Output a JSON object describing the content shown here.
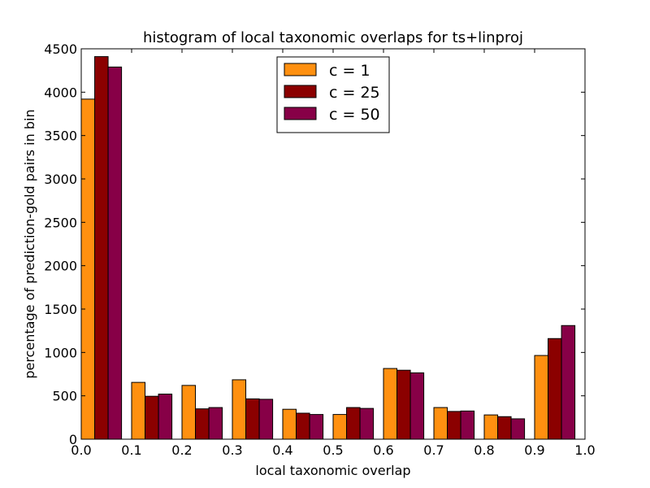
{
  "chart_data": {
    "type": "bar",
    "title": "histogram of local taxonomic overlaps for ts+linproj",
    "xlabel": "local taxonomic overlap",
    "ylabel": "percentage of prediction-gold pairs in bin",
    "xlim": [
      0.0,
      1.0
    ],
    "ylim": [
      0,
      4500
    ],
    "xticks": [
      "0.0",
      "0.1",
      "0.2",
      "0.3",
      "0.4",
      "0.5",
      "0.6",
      "0.7",
      "0.8",
      "0.9",
      "1.0"
    ],
    "yticks": [
      "0",
      "500",
      "1000",
      "1500",
      "2000",
      "2500",
      "3000",
      "3500",
      "4000",
      "4500"
    ],
    "bin_edges": [
      0.0,
      0.1,
      0.2,
      0.3,
      0.4,
      0.5,
      0.6,
      0.7,
      0.8,
      0.9,
      1.0
    ],
    "legend_position": "top-center",
    "grid": false,
    "series": [
      {
        "name": "c = 1",
        "color": "#ff9010",
        "values": [
          3920,
          655,
          620,
          685,
          345,
          285,
          815,
          365,
          280,
          965
        ]
      },
      {
        "name": "c = 25",
        "color": "#8b0000",
        "values": [
          4410,
          495,
          350,
          465,
          300,
          365,
          795,
          320,
          260,
          1160
        ]
      },
      {
        "name": "c = 50",
        "color": "#870047",
        "values": [
          4290,
          520,
          365,
          460,
          285,
          355,
          765,
          325,
          235,
          1310
        ]
      }
    ]
  }
}
